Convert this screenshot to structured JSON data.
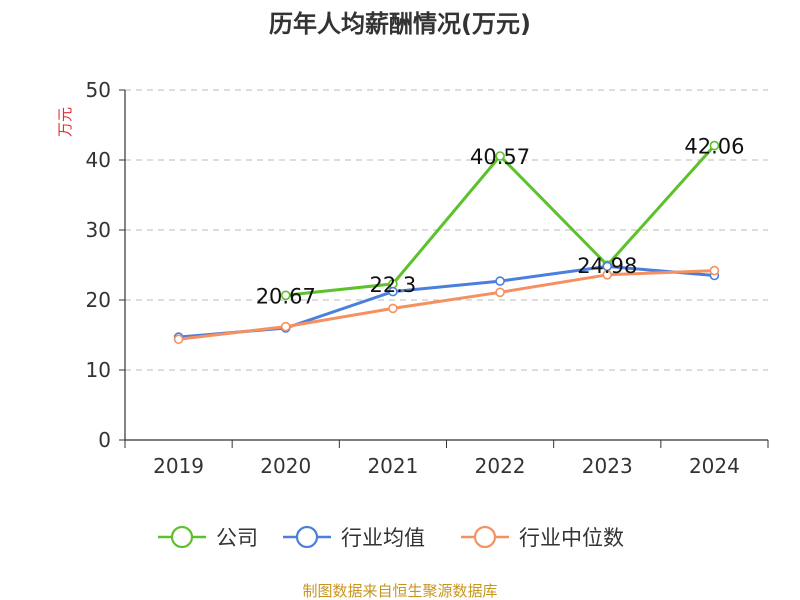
{
  "chart_data": {
    "type": "line",
    "title": "历年人均薪酬情况(万元)",
    "ylabel": "万元",
    "xlabel": "",
    "categories": [
      "2019",
      "2020",
      "2021",
      "2022",
      "2023",
      "2024"
    ],
    "ylim": [
      0,
      50
    ],
    "yticks": [
      0,
      10,
      20,
      30,
      40,
      50
    ],
    "grid": true,
    "legend_position": "bottom",
    "series": [
      {
        "name": "公司",
        "color": "#5cc12a",
        "values": [
          null,
          20.67,
          22.3,
          40.57,
          24.98,
          42.06
        ],
        "labels": [
          null,
          "20.67",
          "22.3",
          "40.57",
          "24.98",
          "42.06"
        ]
      },
      {
        "name": "行业均值",
        "color": "#4a7fdc",
        "values": [
          14.7,
          16.0,
          21.2,
          22.7,
          24.8,
          23.5
        ],
        "labels": [
          null,
          null,
          null,
          null,
          null,
          null
        ]
      },
      {
        "name": "行业中位数",
        "color": "#f59060",
        "values": [
          14.4,
          16.2,
          18.8,
          21.1,
          23.6,
          24.2
        ],
        "labels": [
          null,
          null,
          null,
          null,
          null,
          null
        ]
      }
    ]
  },
  "source": "制图数据来自恒生聚源数据库"
}
